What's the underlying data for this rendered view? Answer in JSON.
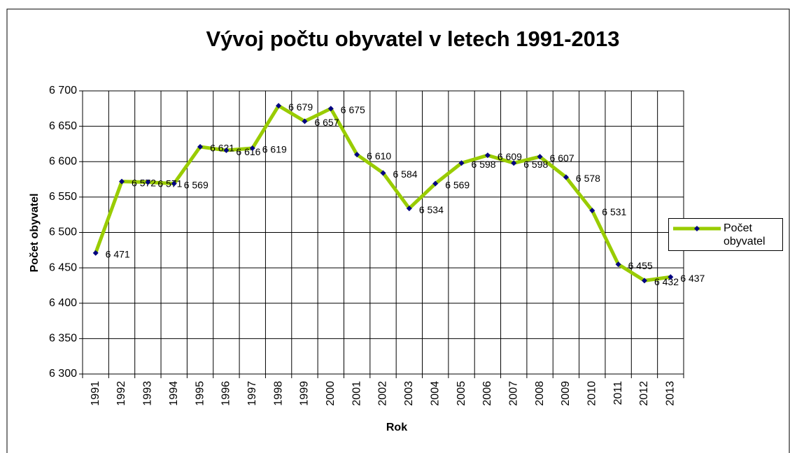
{
  "chart_data": {
    "type": "line",
    "title": "Vývoj počtu obyvatel v letech 1991-2013",
    "xlabel": "Rok",
    "ylabel": "Počet obyvatel",
    "categories": [
      "1991",
      "1992",
      "1993",
      "1994",
      "1995",
      "1996",
      "1997",
      "1998",
      "1999",
      "2000",
      "2001",
      "2002",
      "2003",
      "2004",
      "2005",
      "2006",
      "2007",
      "2008",
      "2009",
      "2010",
      "2011",
      "2012",
      "2013"
    ],
    "series": [
      {
        "name": "Počet obyvatel",
        "color": "#99cc00",
        "marker_color": "#000080",
        "values": [
          6471,
          6572,
          6571,
          6569,
          6621,
          6616,
          6619,
          6679,
          6657,
          6675,
          6610,
          6584,
          6534,
          6569,
          6598,
          6609,
          6598,
          6607,
          6578,
          6531,
          6455,
          6432,
          6437
        ],
        "value_labels": [
          "6 471",
          "6 572",
          "6 571",
          "6 569",
          "6 621",
          "6 616",
          "6 619",
          "6 679",
          "6 657",
          "6 675",
          "6 610",
          "6 584",
          "6 534",
          "6 569",
          "6 598",
          "6 609",
          "6 598",
          "6 607",
          "6 578",
          "6 531",
          "6 455",
          "6 432",
          "6 437"
        ]
      }
    ],
    "ylim": [
      6300,
      6700
    ],
    "yticks": [
      {
        "value": 6300,
        "label": "6 300"
      },
      {
        "value": 6350,
        "label": "6 350"
      },
      {
        "value": 6400,
        "label": "6 400"
      },
      {
        "value": 6450,
        "label": "6 450"
      },
      {
        "value": 6500,
        "label": "6 500"
      },
      {
        "value": 6550,
        "label": "6 550"
      },
      {
        "value": 6600,
        "label": "6 600"
      },
      {
        "value": 6650,
        "label": "6 650"
      },
      {
        "value": 6700,
        "label": "6 700"
      }
    ],
    "grid": true,
    "legend": "right"
  }
}
